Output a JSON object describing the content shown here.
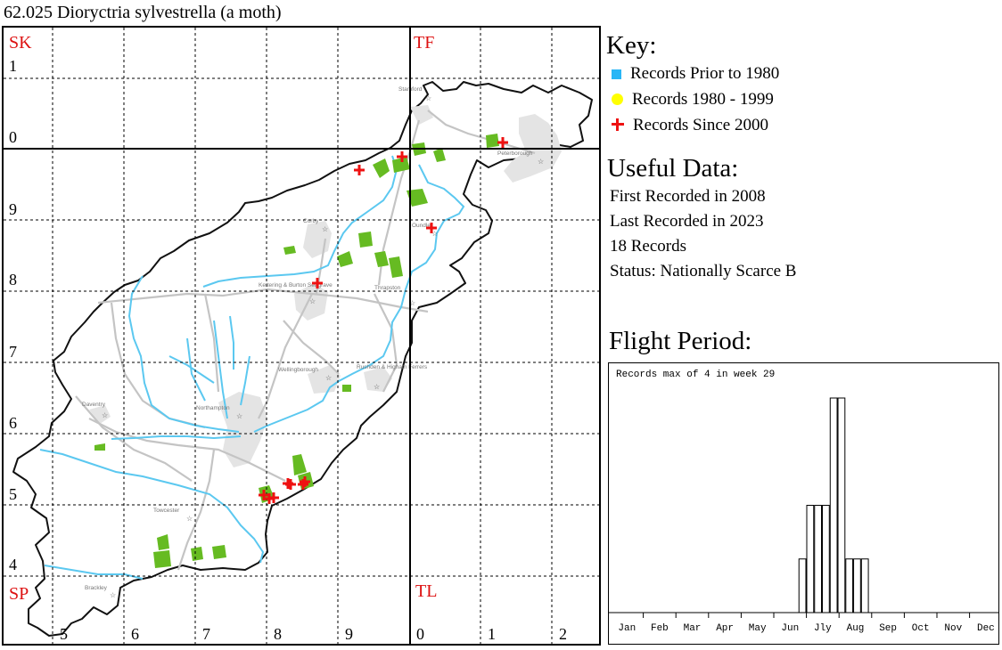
{
  "title": "62.025 Dioryctria sylvestrella (a moth)",
  "colors": {
    "grid": "#000000",
    "square_label": "#dd1111",
    "river": "#5bc8f0",
    "road": "#c4c4c4",
    "town": "#e4e4e4",
    "woodland": "#66bb22",
    "record_since_2000": "#ee1111",
    "record_prior_1980": "#29b6f6",
    "record_1980_1999": "#ffff00"
  },
  "map": {
    "square_labels": [
      "SK",
      "TF",
      "SP",
      "TL"
    ],
    "easting_labels": [
      "5",
      "6",
      "7",
      "8",
      "9",
      "0",
      "1",
      "2"
    ],
    "northing_labels": [
      "1",
      "0",
      "9",
      "8",
      "7",
      "6",
      "5",
      "4"
    ],
    "towns": [
      {
        "name": "Stamford",
        "icon": "star-icon"
      },
      {
        "name": "Peterborough",
        "icon": "star-icon"
      },
      {
        "name": "Corby",
        "icon": "star-icon"
      },
      {
        "name": "Oundle",
        "icon": "star-icon"
      },
      {
        "name": "Kettering & Burton Seagrave",
        "icon": "star-icon"
      },
      {
        "name": "Thrapston",
        "icon": "star-icon"
      },
      {
        "name": "Wellingborough",
        "icon": "star-icon"
      },
      {
        "name": "Rushden & Higham Ferrers",
        "icon": "star-icon"
      },
      {
        "name": "Daventry",
        "icon": "star-icon"
      },
      {
        "name": "Northampton",
        "icon": "star-icon"
      },
      {
        "name": "Towcester",
        "icon": "star-icon"
      },
      {
        "name": "Brackley",
        "icon": "star-icon"
      }
    ],
    "record_count_plotted": 12
  },
  "key": {
    "title": "Key:",
    "items": [
      {
        "label": "Records Prior to 1980",
        "symbol": "blue-square-icon"
      },
      {
        "label": "Records 1980 - 1999",
        "symbol": "yellow-dot-icon"
      },
      {
        "label": "Records Since 2000",
        "symbol": "red-cross-icon"
      }
    ]
  },
  "useful_data": {
    "title": "Useful Data:",
    "first_recorded": "First Recorded in 2008",
    "last_recorded": "Last Recorded in 2023",
    "records": "18 Records",
    "status": "Status: Nationally Scarce B"
  },
  "flight_period": {
    "title": "Flight Period:",
    "caption": "Records max of 4 in week 29"
  },
  "chart_data": {
    "type": "bar",
    "x_unit": "week",
    "weeks": [
      25,
      26,
      27,
      28,
      29,
      30,
      31,
      32,
      33
    ],
    "values": [
      1,
      2,
      2,
      2,
      4,
      4,
      1,
      1,
      1
    ],
    "months": [
      "Jan",
      "Feb",
      "Mar",
      "Apr",
      "May",
      "Jun",
      "Jly",
      "Aug",
      "Sep",
      "Oct",
      "Nov",
      "Dec"
    ],
    "xlim": [
      1,
      53
    ],
    "ylim": [
      0,
      4
    ],
    "grid": false,
    "legend": "none"
  }
}
